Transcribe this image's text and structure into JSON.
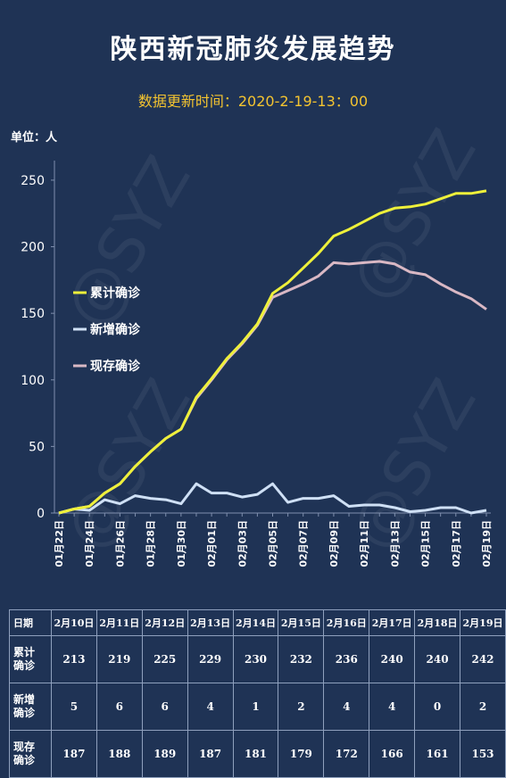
{
  "header": {
    "title": "陕西新冠肺炎发展趋势",
    "subtitle": "数据更新时间：2020-2-19-13：00",
    "unit": "单位：人"
  },
  "colors": {
    "background": "#1f3355",
    "cumulative": "#eef03a",
    "new": "#cfe0f5",
    "current": "#d9b8c4"
  },
  "chart_data": {
    "type": "line",
    "x": [
      "01月22日",
      "01月23日",
      "01月24日",
      "01月25日",
      "01月26日",
      "01月27日",
      "01月28日",
      "01月29日",
      "01月30日",
      "01月31日",
      "02月01日",
      "02月02日",
      "02月03日",
      "02月04日",
      "02月05日",
      "02月06日",
      "02月07日",
      "02月08日",
      "02月09日",
      "02月10日",
      "02月11日",
      "02月12日",
      "02月13日",
      "02月14日",
      "02月15日",
      "02月16日",
      "02月17日",
      "02月18日",
      "02月19日"
    ],
    "x_tick_labels": [
      "01月22日",
      "01月24日",
      "01月26日",
      "01月28日",
      "01月30日",
      "02月01日",
      "02月03日",
      "02月05日",
      "02月07日",
      "02月09日",
      "02月11日",
      "02月13日",
      "02月15日",
      "02月17日",
      "02月19日"
    ],
    "series": [
      {
        "name": "累计确诊",
        "color": "#eef03a",
        "values": [
          0,
          3,
          5,
          15,
          22,
          35,
          46,
          56,
          63,
          87,
          101,
          116,
          128,
          142,
          165,
          173,
          184,
          195,
          208,
          213,
          219,
          225,
          229,
          230,
          232,
          236,
          240,
          240,
          242
        ]
      },
      {
        "name": "新增确诊",
        "color": "#cfe0f5",
        "values": [
          0,
          3,
          2,
          10,
          7,
          13,
          11,
          10,
          7,
          22,
          15,
          15,
          12,
          14,
          22,
          8,
          11,
          11,
          13,
          5,
          6,
          6,
          4,
          1,
          2,
          4,
          4,
          0,
          2
        ]
      },
      {
        "name": "现存确诊",
        "color": "#d9b8c4",
        "values": [
          0,
          3,
          5,
          15,
          22,
          35,
          46,
          56,
          63,
          86,
          100,
          115,
          127,
          141,
          162,
          167,
          172,
          178,
          188,
          187,
          188,
          189,
          187,
          181,
          179,
          172,
          166,
          161,
          153
        ]
      }
    ],
    "yticks": [
      0,
      50,
      100,
      150,
      200,
      250
    ],
    "ylim": [
      0,
      260
    ],
    "legend_position": "left",
    "grid": false
  },
  "table": {
    "headers": [
      "日期",
      "2月10日",
      "2月11日",
      "2月12日",
      "2月13日",
      "2月14日",
      "2月15日",
      "2月16日",
      "2月17日",
      "2月18日",
      "2月19日"
    ],
    "rows": [
      {
        "label_line1": "累计",
        "label_line2": "确诊",
        "values": [
          "213",
          "219",
          "225",
          "229",
          "230",
          "232",
          "236",
          "240",
          "240",
          "242"
        ]
      },
      {
        "label_line1": "新增",
        "label_line2": "确诊",
        "values": [
          "5",
          "6",
          "6",
          "4",
          "1",
          "2",
          "4",
          "4",
          "0",
          "2"
        ]
      },
      {
        "label_line1": "现存",
        "label_line2": "确诊",
        "values": [
          "187",
          "188",
          "189",
          "187",
          "181",
          "179",
          "172",
          "166",
          "161",
          "153"
        ]
      }
    ]
  },
  "watermark": "@SYZ"
}
